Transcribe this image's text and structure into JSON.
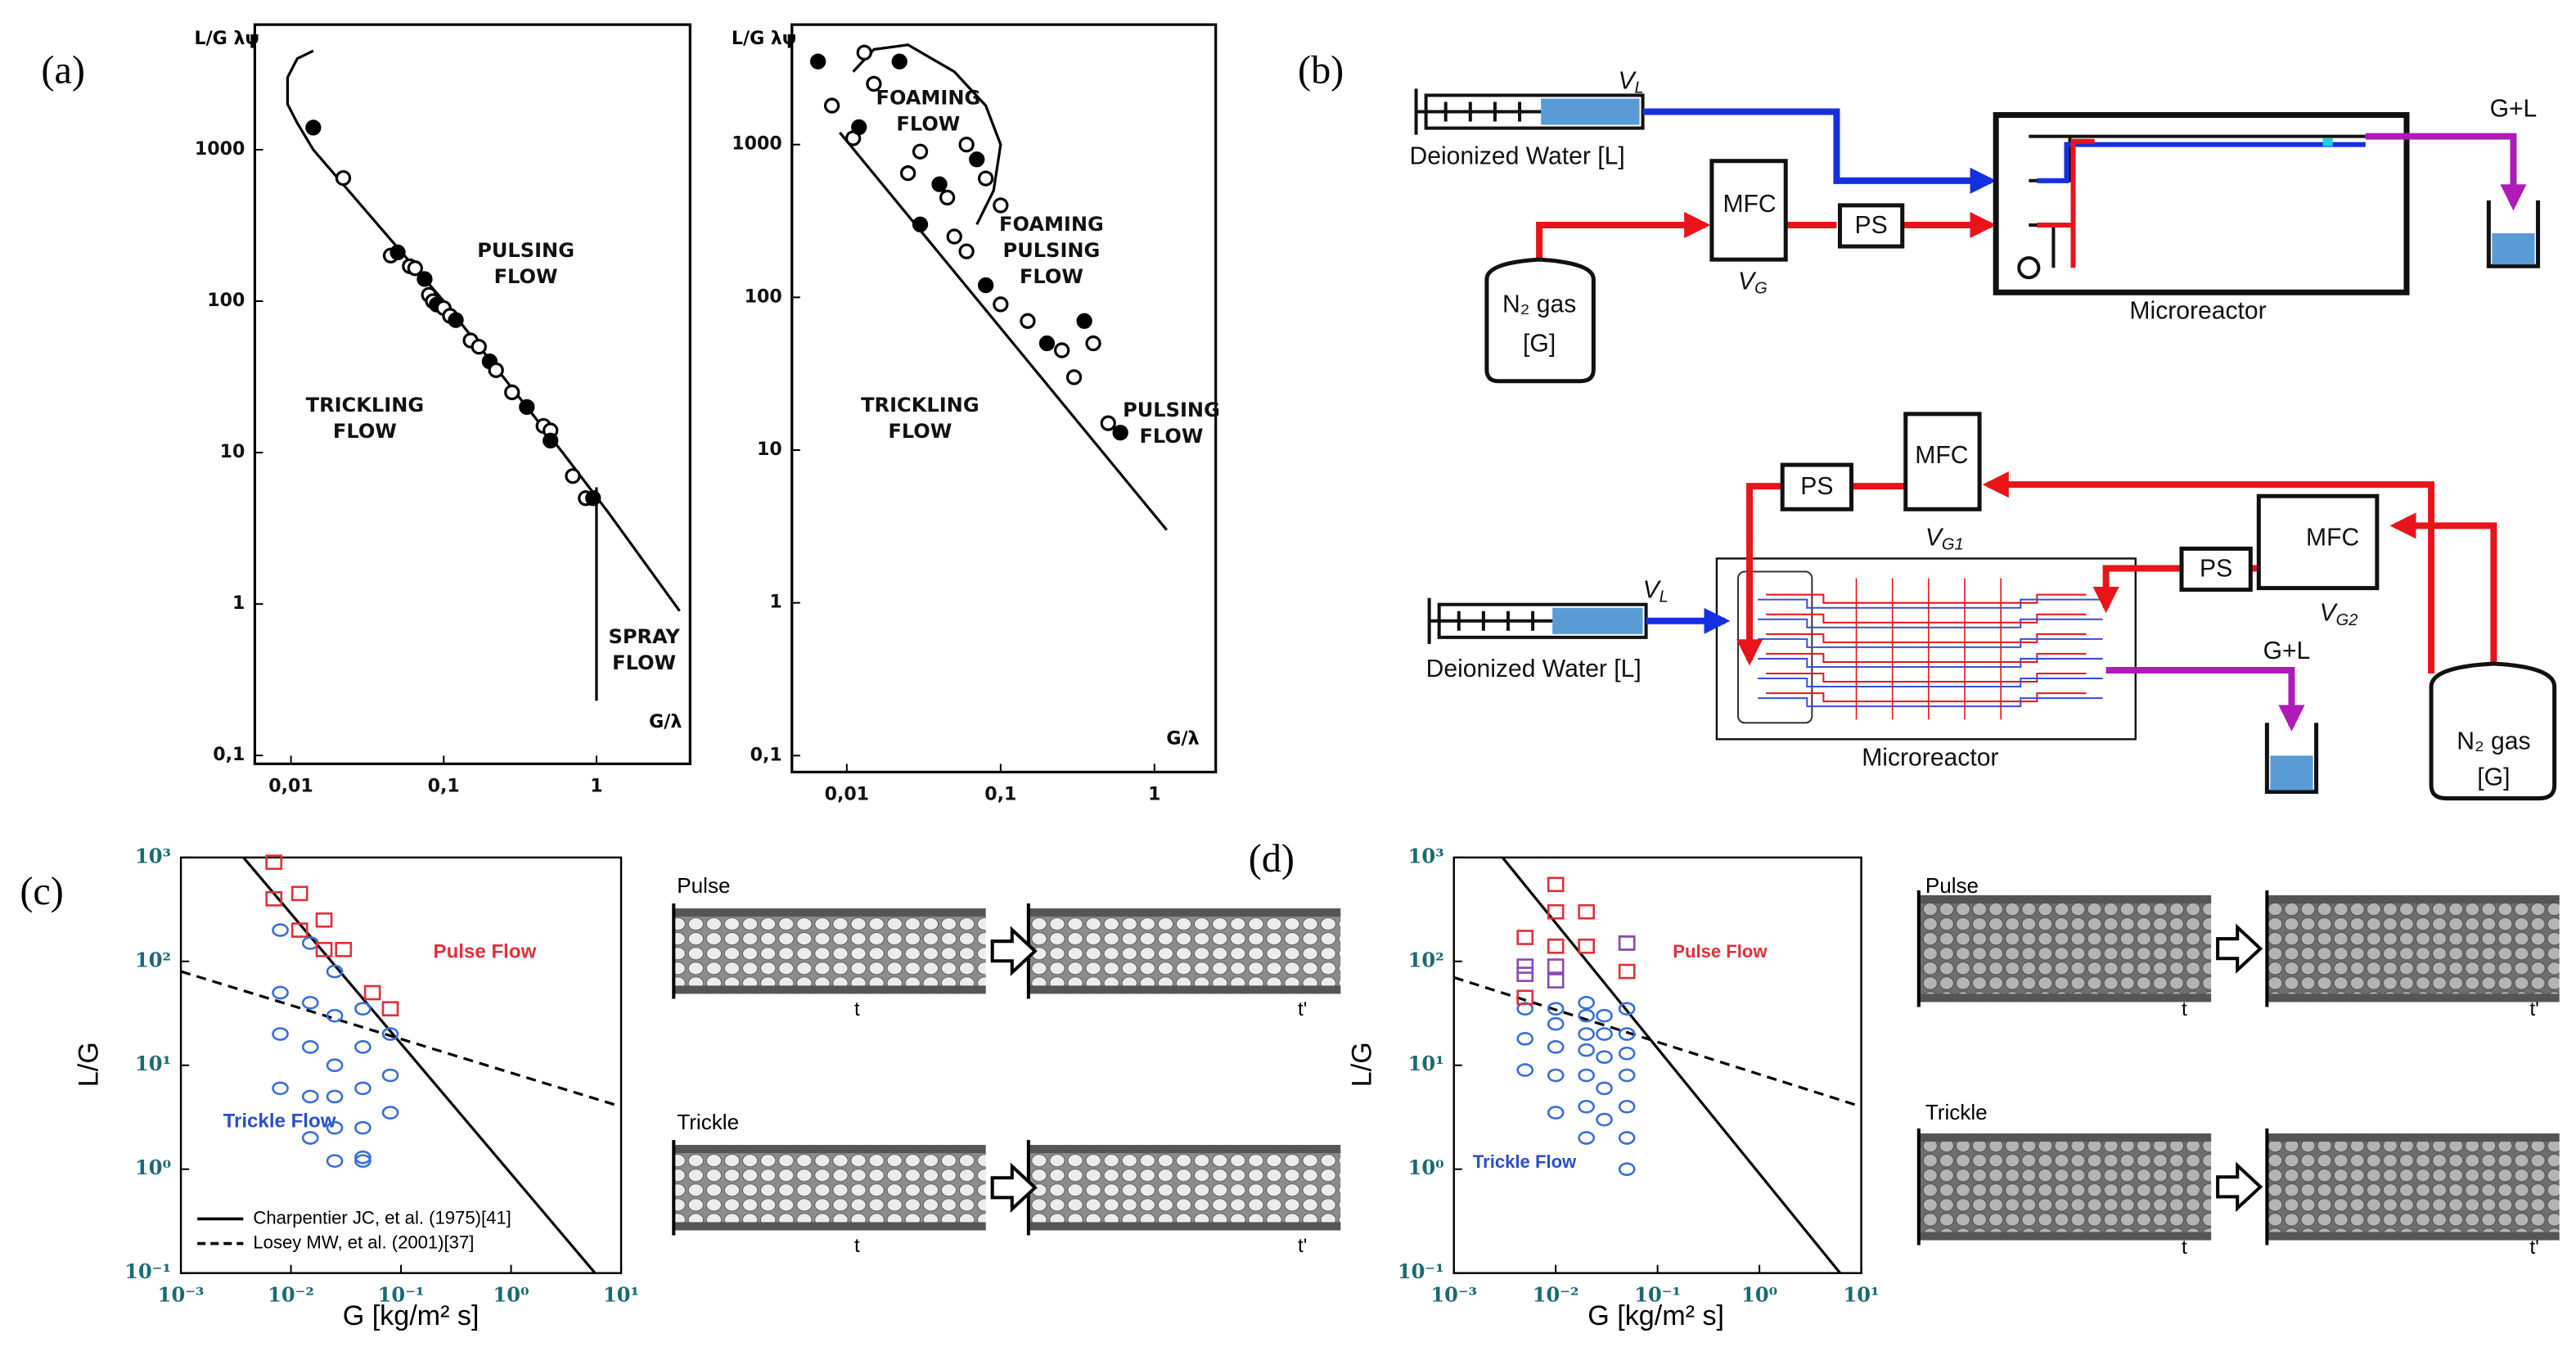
{
  "panel_labels": [
    "(a)",
    "(b)",
    "(c)",
    "(d)"
  ],
  "chart_data": [
    {
      "type": "scatter",
      "xscale": "log",
      "yscale": "log",
      "x_label": "G/λ",
      "y_label": "L/G λψ",
      "xlim": [
        0.0058,
        4.1
      ],
      "ylim": [
        0.088,
        6700
      ],
      "xticks": [
        {
          "value": 0.01,
          "label": "0,01"
        },
        {
          "value": 0.1,
          "label": "0,1"
        },
        1
      ],
      "yticks": [
        {
          "value": 0.1,
          "label": "0,1"
        },
        1,
        10,
        100,
        1000
      ],
      "annotations": [
        {
          "text": [
            "PULSING",
            "FLOW"
          ]
        },
        {
          "text": [
            "TRICKLING",
            "FLOW"
          ]
        },
        {
          "text": [
            "SPRAY",
            "FLOW"
          ]
        }
      ],
      "series": [
        {
          "style": "solid",
          "color": "#000000",
          "x": [
            0.014,
            0.011,
            0.0095,
            0.0095,
            0.011,
            0.014,
            0.1,
            0.6,
            1.2,
            3.5
          ],
          "values": [
            4500,
            4000,
            3000,
            2000,
            1500,
            1000,
            100,
            10,
            4,
            0.9
          ]
        },
        {
          "style": "solid",
          "color": "#000000",
          "x": [
            1,
            1
          ],
          "values": [
            5.9,
            0.23
          ]
        },
        {
          "style": "markers",
          "marker": "circle",
          "color": "#000000",
          "x": [
            0.014,
            0.022,
            0.045,
            0.05,
            0.06,
            0.065,
            0.075,
            0.08,
            0.085,
            0.09,
            0.1,
            0.11,
            0.12,
            0.15,
            0.17,
            0.2,
            0.22,
            0.28,
            0.35,
            0.45,
            0.5,
            0.5,
            0.7,
            0.85,
            0.95
          ],
          "values": [
            1400,
            650,
            200,
            210,
            170,
            165,
            140,
            110,
            100,
            95,
            90,
            80,
            75,
            55,
            50,
            40,
            35,
            25,
            20,
            15,
            14,
            12,
            7,
            5,
            5
          ]
        }
      ]
    },
    {
      "type": "scatter",
      "xscale": "log",
      "yscale": "log",
      "x_label": "G/λ",
      "y_label": "L/G λψ",
      "xlim": [
        0.0044,
        2.5
      ],
      "ylim": [
        0.078,
        6100
      ],
      "xticks": [
        {
          "value": 0.01,
          "label": "0,01"
        },
        {
          "value": 0.1,
          "label": "0,1"
        },
        1
      ],
      "yticks": [
        {
          "value": 0.1,
          "label": "0,1"
        },
        1,
        10,
        100,
        1000
      ],
      "annotations": [
        {
          "text": [
            "FOAMING",
            "FLOW"
          ]
        },
        {
          "text": [
            "FOAMING",
            "PULSING",
            "FLOW"
          ]
        },
        {
          "text": [
            "TRICKLING",
            "FLOW"
          ]
        },
        {
          "text": [
            "PULSING",
            "FLOW"
          ]
        }
      ],
      "series": [
        {
          "style": "solid",
          "color": "#000000",
          "x": [
            0.009,
            1.2
          ],
          "values": [
            1200,
            3
          ]
        },
        {
          "style": "solid",
          "color": "#000000",
          "x": [
            0.011,
            0.015,
            0.025,
            0.05,
            0.08,
            0.1,
            0.09,
            0.07
          ],
          "values": [
            3000,
            4200,
            4500,
            3000,
            1800,
            1000,
            500,
            300
          ]
        },
        {
          "style": "markers",
          "marker": "circle",
          "color": "#000000",
          "x": [
            0.0065,
            0.008,
            0.011,
            0.012,
            0.013,
            0.015,
            0.022,
            0.025,
            0.03,
            0.04,
            0.045,
            0.06,
            0.07,
            0.08,
            0.1,
            0.03,
            0.05,
            0.06,
            0.08,
            0.1,
            0.15,
            0.2,
            0.25,
            0.3,
            0.35,
            0.4,
            0.5,
            0.6
          ],
          "values": [
            3500,
            1800,
            1100,
            1300,
            4000,
            2500,
            3500,
            650,
            900,
            550,
            450,
            1000,
            800,
            600,
            400,
            300,
            250,
            200,
            120,
            90,
            70,
            50,
            45,
            30,
            70,
            50,
            15,
            13
          ]
        }
      ]
    },
    {
      "type": "scatter",
      "xscale": "log",
      "yscale": "log",
      "x_label": "G [kg/m² s]",
      "y_label": "L/G",
      "xlim": [
        0.001,
        10
      ],
      "ylim": [
        0.1,
        1000
      ],
      "xticks": [
        {
          "value": 0.001,
          "label": "10⁻³"
        },
        {
          "value": 0.01,
          "label": "10⁻²"
        },
        {
          "value": 0.1,
          "label": "10⁻¹"
        },
        {
          "value": 1,
          "label": "10⁰"
        },
        {
          "value": 10,
          "label": "10¹"
        }
      ],
      "yticks": [
        {
          "value": 0.1,
          "label": "10⁻¹"
        },
        {
          "value": 1,
          "label": "10⁰"
        },
        {
          "value": 10,
          "label": "10¹"
        },
        {
          "value": 100,
          "label": "10²"
        },
        {
          "value": 1000,
          "label": "10³"
        }
      ],
      "legend": "lower left",
      "annotations": [
        {
          "text": [
            "Pulse Flow"
          ],
          "color": "#e0303a"
        },
        {
          "text": [
            "Trickle Flow"
          ],
          "color": "#2a4fc8"
        }
      ],
      "series": [
        {
          "name": "Charpentier JC, et al. (1975)[41]",
          "style": "solid",
          "color": "#000000",
          "x": [
            0.0037,
            5.8
          ],
          "values": [
            1000,
            0.1
          ]
        },
        {
          "name": "Losey MW, et al. (2001)[37]",
          "style": "dashed",
          "color": "#000000",
          "x": [
            0.001,
            10
          ],
          "values": [
            80,
            4
          ]
        },
        {
          "style": "markers",
          "marker": "circle",
          "color": "#3a6fd8",
          "x": [
            0.008,
            0.008,
            0.008,
            0.008,
            0.015,
            0.015,
            0.015,
            0.015,
            0.015,
            0.025,
            0.025,
            0.025,
            0.025,
            0.025,
            0.025,
            0.045,
            0.045,
            0.045,
            0.045,
            0.045,
            0.08,
            0.08,
            0.08,
            0.045
          ],
          "values": [
            200,
            50,
            20,
            6,
            150,
            40,
            15,
            5,
            2,
            80,
            30,
            10,
            5,
            2.5,
            1.2,
            35,
            15,
            6,
            2.5,
            1.2,
            20,
            8,
            3.5,
            1.3
          ]
        },
        {
          "style": "markers",
          "marker": "square",
          "color": "#e0303a",
          "x": [
            0.007,
            0.007,
            0.012,
            0.012,
            0.02,
            0.02,
            0.03,
            0.055,
            0.08
          ],
          "values": [
            900,
            400,
            450,
            200,
            250,
            130,
            130,
            50,
            35
          ]
        }
      ]
    },
    {
      "type": "scatter",
      "xscale": "log",
      "yscale": "log",
      "x_label": "G [kg/m² s]",
      "y_label": "L/G",
      "xlim": [
        0.001,
        10
      ],
      "ylim": [
        0.1,
        1000
      ],
      "xticks": [
        {
          "value": 0.001,
          "label": "10⁻³"
        },
        {
          "value": 0.01,
          "label": "10⁻²"
        },
        {
          "value": 0.1,
          "label": "10⁻¹"
        },
        {
          "value": 1,
          "label": "10⁰"
        },
        {
          "value": 10,
          "label": "10¹"
        }
      ],
      "yticks": [
        {
          "value": 0.1,
          "label": "10⁻¹"
        },
        {
          "value": 1,
          "label": "10⁰"
        },
        {
          "value": 10,
          "label": "10¹"
        },
        {
          "value": 100,
          "label": "10²"
        },
        {
          "value": 1000,
          "label": "10³"
        }
      ],
      "annotations": [
        {
          "text": [
            "Pulse Flow"
          ],
          "color": "#e0303a"
        },
        {
          "text": [
            "Trickle Flow"
          ],
          "color": "#2a4fc8"
        }
      ],
      "series": [
        {
          "style": "solid",
          "color": "#000000",
          "x": [
            0.003,
            6.2
          ],
          "values": [
            1000,
            0.1
          ]
        },
        {
          "style": "dashed",
          "color": "#000000",
          "x": [
            0.001,
            10
          ],
          "values": [
            70,
            4
          ]
        },
        {
          "style": "markers",
          "marker": "circle",
          "color": "#3a6fd8",
          "x": [
            0.005,
            0.005,
            0.005,
            0.01,
            0.01,
            0.01,
            0.01,
            0.01,
            0.02,
            0.02,
            0.02,
            0.02,
            0.02,
            0.02,
            0.02,
            0.03,
            0.03,
            0.03,
            0.03,
            0.03,
            0.05,
            0.05,
            0.05,
            0.05,
            0.05,
            0.05,
            0.05
          ],
          "values": [
            35,
            18,
            9,
            35,
            25,
            15,
            8,
            3.5,
            40,
            30,
            20,
            14,
            8,
            4,
            2,
            30,
            20,
            12,
            6,
            3,
            35,
            20,
            13,
            8,
            4,
            2,
            1
          ]
        },
        {
          "style": "markers",
          "marker": "square",
          "color": "#e0303a",
          "x": [
            0.005,
            0.005,
            0.01,
            0.01,
            0.01,
            0.02,
            0.02,
            0.05,
            0.05
          ],
          "values": [
            170,
            45,
            550,
            300,
            140,
            300,
            140,
            150,
            80
          ]
        },
        {
          "style": "markers",
          "marker": "square",
          "color": "#8a4bb0",
          "x": [
            0.005,
            0.005,
            0.01,
            0.01,
            0.05
          ],
          "values": [
            90,
            75,
            90,
            65,
            150
          ]
        }
      ]
    }
  ],
  "diagram": {
    "top": {
      "syringe_label": {
        "main": "V",
        "sub": "L"
      },
      "water": "Deionized Water [L]",
      "mfc": "MFC",
      "mfc_label": {
        "main": "V",
        "sub": "G"
      },
      "ps": "PS",
      "gas": [
        "N₂ gas",
        "[G]"
      ],
      "reactor": "Microreactor",
      "outlet": "G+L"
    },
    "bottom": {
      "syringe_label": {
        "main": "V",
        "sub": "L"
      },
      "water": "Deionized Water [L]",
      "ps1": "PS",
      "mfc1": "MFC",
      "mfc1_label": {
        "main": "V",
        "sub": "G1"
      },
      "ps2": "PS",
      "mfc2": "MFC",
      "mfc2_label": {
        "main": "V",
        "sub": "G2"
      },
      "gas": [
        "N₂ gas",
        "[G]"
      ],
      "reactor": "Microreactor",
      "outlet": "G+L"
    }
  },
  "photos": {
    "c": {
      "top": "Pulse",
      "bottom": "Trickle",
      "times": [
        "t",
        "t'"
      ]
    },
    "d": {
      "top": "Pulse",
      "bottom": "Trickle",
      "times": [
        "t",
        "t'"
      ]
    }
  }
}
